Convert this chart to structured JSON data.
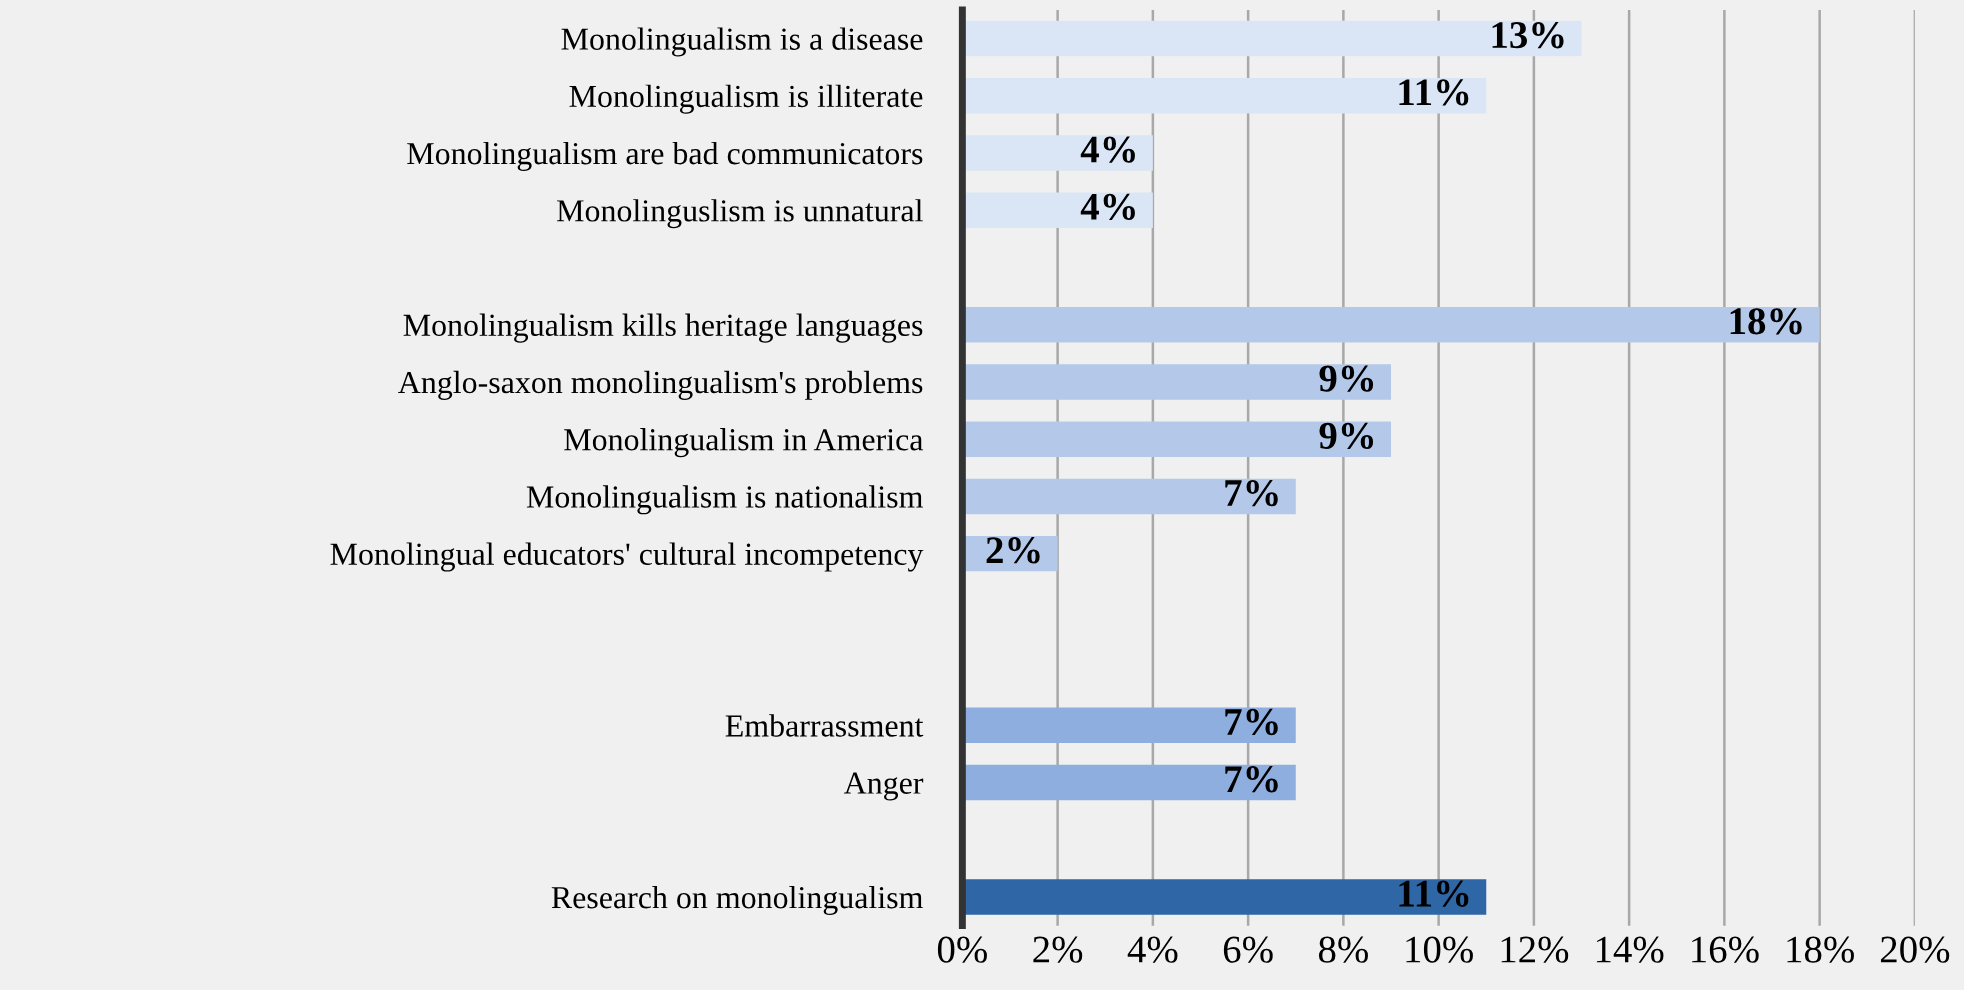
{
  "chart_data": {
    "type": "bar",
    "orientation": "horizontal",
    "categories": [
      "Monolingualism is a disease",
      "Monolingualism is illiterate",
      "Monolingualism are bad communicators",
      "Monolinguslism is unnatural",
      null,
      "Monolingualism kills heritage languages",
      "Anglo-saxon monolingualism's problems",
      "Monolingualism in America",
      "Monolingualism is nationalism",
      "Monolingual educators' cultural incompetency",
      null,
      null,
      "Embarrassment",
      "Anger",
      null,
      "Research on monolingualism"
    ],
    "values": [
      13,
      11,
      4,
      4,
      null,
      18,
      9,
      9,
      7,
      2,
      null,
      null,
      7,
      7,
      null,
      11
    ],
    "colors": [
      "#dae5f5",
      "#dae5f5",
      "#dae5f5",
      "#dae5f5",
      null,
      "#b4c9ea",
      "#b4c9ea",
      "#b4c9ea",
      "#b4c9ea",
      "#b4c9ea",
      null,
      null,
      "#8eaee0",
      "#8eaee0",
      null,
      "#2e66a6"
    ],
    "value_labels": [
      "13%",
      "11%",
      "4%",
      "4%",
      null,
      "18%",
      "9%",
      "9%",
      "7%",
      "2%",
      null,
      null,
      "7%",
      "7%",
      null,
      "11%"
    ],
    "xlim": [
      0,
      20
    ],
    "xticks": [
      {
        "value": 0,
        "label": "0%"
      },
      {
        "value": 2,
        "label": "2%"
      },
      {
        "value": 4,
        "label": "4%"
      },
      {
        "value": 6,
        "label": "6%"
      },
      {
        "value": 8,
        "label": "8%"
      },
      {
        "value": 10,
        "label": "10%"
      },
      {
        "value": 12,
        "label": "12%"
      },
      {
        "value": 14,
        "label": "14%"
      },
      {
        "value": 16,
        "label": "16%"
      },
      {
        "value": 18,
        "label": "18%"
      },
      {
        "value": 20,
        "label": "20%"
      }
    ],
    "grid": "x",
    "legend": false
  }
}
